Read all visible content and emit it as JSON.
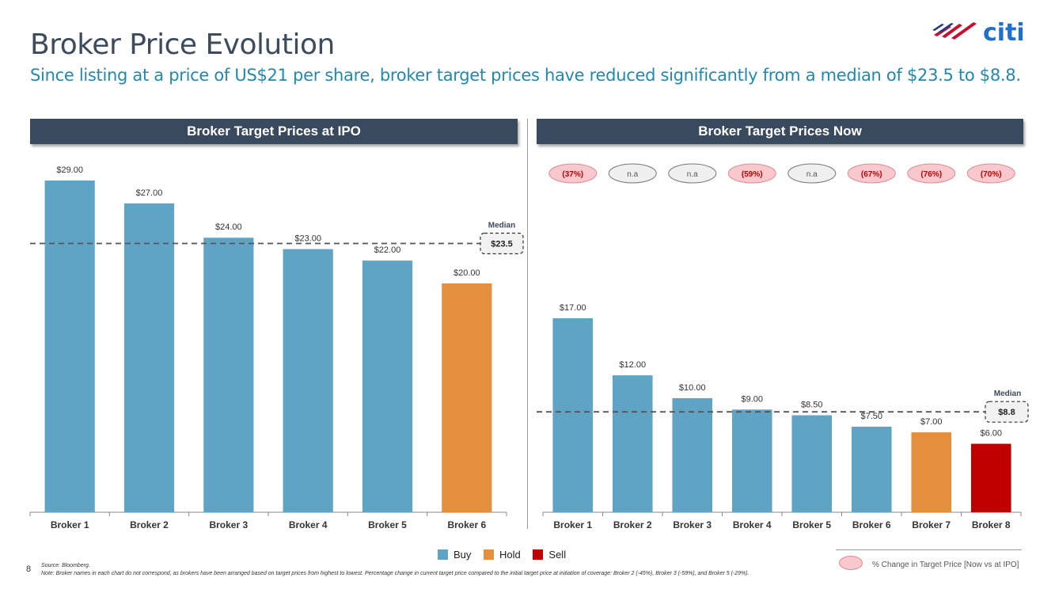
{
  "title": "Broker Price Evolution",
  "subtitle": "Since listing at a price of US$21 per share, broker target prices have reduced significantly from a median of $23.5 to $8.8.",
  "page_number": "8",
  "source": "Source: Bloomberg.",
  "note": "Note: Broker names in each chart do not correspond, as brokers have been arranged based on target prices from highest to lowest. Percentage change in current target price compared to the initial target price at initiation of coverage: Broker 2 (-45%), Broker 3 (-59%), and Broker 5 (-29%).",
  "logo_text": "citi",
  "colors": {
    "buy": "#5fa3c5",
    "hold": "#e48f3e",
    "sell": "#c00000",
    "header": "#3a4a5e",
    "title": "#3d4b5e",
    "subtitle": "#1f8ab0"
  },
  "legend": {
    "items": [
      {
        "label": "Buy",
        "color": "#5fa3c5"
      },
      {
        "label": "Hold",
        "color": "#e48f3e"
      },
      {
        "label": "Sell",
        "color": "#c00000"
      }
    ],
    "pct_label": "% Change in Target Price [Now vs at IPO]"
  },
  "chart_data": [
    {
      "type": "bar",
      "title": "Broker Target Prices at IPO",
      "categories": [
        "Broker 1",
        "Broker 2",
        "Broker 3",
        "Broker 4",
        "Broker 5",
        "Broker 6"
      ],
      "values": [
        29.0,
        27.0,
        24.0,
        23.0,
        22.0,
        20.0
      ],
      "value_labels": [
        "$29.00",
        "$27.00",
        "$24.00",
        "$23.00",
        "$22.00",
        "$20.00"
      ],
      "ratings": [
        "Buy",
        "Buy",
        "Buy",
        "Buy",
        "Buy",
        "Hold"
      ],
      "median": {
        "label": "Median",
        "value": 23.5,
        "value_label": "$23.5"
      },
      "ylim": [
        0,
        30
      ]
    },
    {
      "type": "bar",
      "title": "Broker Target Prices Now",
      "categories": [
        "Broker 1",
        "Broker 2",
        "Broker 3",
        "Broker 4",
        "Broker 5",
        "Broker 6",
        "Broker 7",
        "Broker 8"
      ],
      "values": [
        17.0,
        12.0,
        10.0,
        9.0,
        8.5,
        7.5,
        7.0,
        6.0
      ],
      "value_labels": [
        "$17.00",
        "$12.00",
        "$10.00",
        "$9.00",
        "$8.50",
        "$7.50",
        "$7.00",
        "$6.00"
      ],
      "ratings": [
        "Buy",
        "Buy",
        "Buy",
        "Buy",
        "Buy",
        "Buy",
        "Hold",
        "Sell"
      ],
      "pct_change": [
        "(37%)",
        "n.a",
        "n.a",
        "(59%)",
        "n.a",
        "(67%)",
        "(76%)",
        "(70%)"
      ],
      "median": {
        "label": "Median",
        "value": 8.8,
        "value_label": "$8.8"
      },
      "ylim": [
        0,
        17
      ]
    }
  ]
}
